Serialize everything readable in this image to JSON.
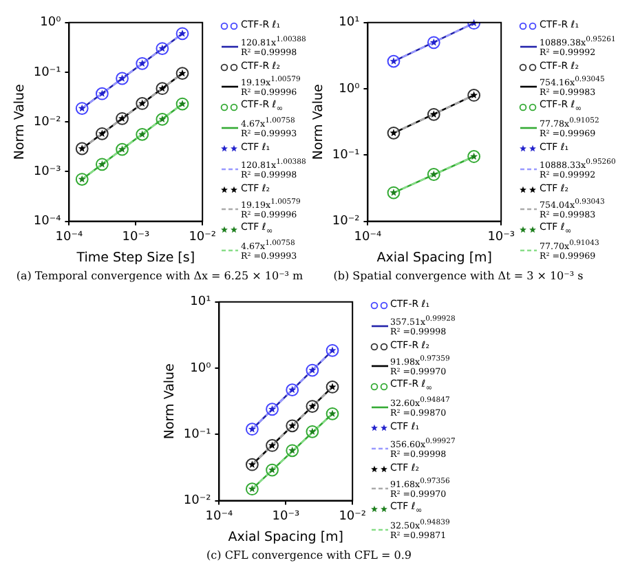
{
  "chart_data": [
    {
      "type": "scatter",
      "xlabel": "Time Step Size [s]",
      "ylabel": "Norm Value",
      "log": "xy",
      "legend": "right",
      "grid": false,
      "xlim": [
        0.0001,
        0.01
      ],
      "xticks": [
        {
          "value": 0.0001,
          "label": "10⁻⁴"
        },
        {
          "value": 0.001,
          "label": "10⁻³"
        },
        {
          "value": 0.01,
          "label": "10⁻²"
        }
      ],
      "ylim": [
        0.0001,
        1
      ],
      "yticks": [
        {
          "value": 0.0001,
          "label": "10⁻⁴"
        },
        {
          "value": 0.001,
          "label": "10⁻³"
        },
        {
          "value": 0.01,
          "label": "10⁻²"
        },
        {
          "value": 0.1,
          "label": "10⁻¹"
        },
        {
          "value": 1,
          "label": "10⁰"
        }
      ],
      "x": [
        0.00015625,
        0.0003125,
        0.000625,
        0.00125,
        0.0025,
        0.005
      ],
      "annotations": [
        "(a) Temporal convergence with Δx = 6.25 × 10⁻³ m"
      ],
      "series": [
        {
          "name": "CTF-R ℓ₁",
          "type": "scatter",
          "marker": "circle",
          "color": "#4444ff",
          "values": [
            0.0187,
            0.037,
            0.075,
            0.15,
            0.3,
            0.6
          ]
        },
        {
          "name": "120.81x$^{1.00388}$\nR² =0.99998",
          "type": "line",
          "marker": "none",
          "line_style": "solid",
          "color": "#2222aa",
          "x": [
            0.00015625,
            0.005
          ],
          "values": [
            0.0187,
            0.6
          ]
        },
        {
          "name": "CTF-R ℓ₂",
          "type": "scatter",
          "marker": "circle",
          "color": "#333333",
          "values": [
            0.0029,
            0.0058,
            0.0117,
            0.0235,
            0.047,
            0.095
          ]
        },
        {
          "name": "19.19x$^{1.00579}$\nR² =0.99996",
          "type": "line",
          "marker": "none",
          "line_style": "solid",
          "color": "#000000",
          "x": [
            0.00015625,
            0.005
          ],
          "values": [
            0.0029,
            0.095
          ]
        },
        {
          "name": "CTF-R ℓ$_{∞}$",
          "type": "scatter",
          "marker": "circle",
          "color": "#33aa33",
          "values": [
            0.0007,
            0.0014,
            0.0028,
            0.0056,
            0.0113,
            0.023
          ]
        },
        {
          "name": "4.67x$^{1.00758}$\nR² =0.99993",
          "type": "line",
          "marker": "none",
          "line_style": "solid",
          "color": "#33aa33",
          "x": [
            0.00015625,
            0.005
          ],
          "values": [
            0.0007,
            0.023
          ]
        },
        {
          "name": "CTF ℓ₁",
          "type": "scatter",
          "marker": "star",
          "color": "#2222cc",
          "values": [
            0.0187,
            0.037,
            0.075,
            0.15,
            0.3,
            0.6
          ]
        },
        {
          "name": "120.81x$^{1.00388}$\nR² =0.99998",
          "type": "line",
          "marker": "none",
          "line_style": "dashed",
          "color": "#9999ff",
          "x": [
            0.00015625,
            0.005
          ],
          "values": [
            0.0187,
            0.6
          ]
        },
        {
          "name": "CTF ℓ₂",
          "type": "scatter",
          "marker": "star",
          "color": "#000000",
          "values": [
            0.0029,
            0.0058,
            0.0117,
            0.0235,
            0.047,
            0.095
          ]
        },
        {
          "name": "19.19x$^{1.00579}$\nR² =0.99996",
          "type": "line",
          "marker": "none",
          "line_style": "dashed",
          "color": "#aaaaaa",
          "x": [
            0.00015625,
            0.005
          ],
          "values": [
            0.0029,
            0.095
          ]
        },
        {
          "name": "CTF ℓ$_{∞}$",
          "type": "scatter",
          "marker": "star",
          "color": "#1e7f1e",
          "values": [
            0.0007,
            0.0014,
            0.0028,
            0.0056,
            0.0113,
            0.023
          ]
        },
        {
          "name": "4.67x$^{1.00758}$\nR² =0.99993",
          "type": "line",
          "marker": "none",
          "line_style": "dashed",
          "color": "#88dd88",
          "x": [
            0.00015625,
            0.005
          ],
          "values": [
            0.0007,
            0.023
          ]
        }
      ]
    },
    {
      "type": "scatter",
      "xlabel": "Axial Spacing [m]",
      "ylabel": "Norm Value",
      "log": "xy",
      "legend": "right",
      "grid": false,
      "xlim": [
        0.0001,
        0.001
      ],
      "xticks": [
        {
          "value": 0.0001,
          "label": "10⁻⁴"
        },
        {
          "value": 0.001,
          "label": "10⁻³"
        }
      ],
      "ylim": [
        0.01,
        10
      ],
      "yticks": [
        {
          "value": 0.01,
          "label": "10⁻²"
        },
        {
          "value": 0.1,
          "label": "10⁻¹"
        },
        {
          "value": 1,
          "label": "10⁰"
        },
        {
          "value": 10,
          "label": "10¹"
        }
      ],
      "x": [
        0.00015625,
        0.0003125,
        0.000625
      ],
      "annotations": [
        "(b) Spatial convergence with Δt = 3 × 10⁻³ s"
      ],
      "series": [
        {
          "name": "CTF-R ℓ₁",
          "type": "scatter",
          "marker": "circle",
          "color": "#4444ff",
          "values": [
            2.6,
            5.0,
            9.8
          ]
        },
        {
          "name": "10889.38x$^{0.95261}$\nR² =0.99992",
          "type": "line",
          "marker": "none",
          "line_style": "solid",
          "color": "#2222aa",
          "x": [
            0.00015625,
            0.000625
          ],
          "values": [
            2.6,
            9.8
          ]
        },
        {
          "name": "CTF-R ℓ₂",
          "type": "scatter",
          "marker": "circle",
          "color": "#333333",
          "values": [
            0.215,
            0.41,
            0.8
          ]
        },
        {
          "name": "754.16x$^{0.93045}$\nR² =0.99983",
          "type": "line",
          "marker": "none",
          "line_style": "solid",
          "color": "#000000",
          "x": [
            0.00015625,
            0.000625
          ],
          "values": [
            0.215,
            0.8
          ]
        },
        {
          "name": "CTF-R ℓ$_{∞}$",
          "type": "scatter",
          "marker": "circle",
          "color": "#33aa33",
          "values": [
            0.027,
            0.051,
            0.095
          ]
        },
        {
          "name": "77.78x$^{0.91052}$\nR² =0.99969",
          "type": "line",
          "marker": "none",
          "line_style": "solid",
          "color": "#33aa33",
          "x": [
            0.00015625,
            0.000625
          ],
          "values": [
            0.027,
            0.095
          ]
        },
        {
          "name": "CTF ℓ₁",
          "type": "scatter",
          "marker": "star",
          "color": "#2222cc",
          "values": [
            2.6,
            5.0,
            9.8
          ]
        },
        {
          "name": "10888.33x$^{0.95260}$\nR² =0.99992",
          "type": "line",
          "marker": "none",
          "line_style": "dashed",
          "color": "#9999ff",
          "x": [
            0.00015625,
            0.000625
          ],
          "values": [
            2.6,
            9.8
          ]
        },
        {
          "name": "CTF ℓ₂",
          "type": "scatter",
          "marker": "star",
          "color": "#000000",
          "values": [
            0.215,
            0.41,
            0.8
          ]
        },
        {
          "name": "754.04x$^{0.93043}$\nR² =0.99983",
          "type": "line",
          "marker": "none",
          "line_style": "dashed",
          "color": "#aaaaaa",
          "x": [
            0.00015625,
            0.000625
          ],
          "values": [
            0.215,
            0.8
          ]
        },
        {
          "name": "CTF ℓ$_{∞}$",
          "type": "scatter",
          "marker": "star",
          "color": "#1e7f1e",
          "values": [
            0.027,
            0.051,
            0.095
          ]
        },
        {
          "name": "77.70x$^{0.91043}$\nR² =0.99969",
          "type": "line",
          "marker": "none",
          "line_style": "dashed",
          "color": "#88dd88",
          "x": [
            0.00015625,
            0.000625
          ],
          "values": [
            0.027,
            0.095
          ]
        }
      ]
    },
    {
      "type": "scatter",
      "xlabel": "Axial Spacing [m]",
      "ylabel": "Norm Value",
      "log": "xy",
      "legend": "right",
      "grid": false,
      "xlim": [
        0.0001,
        0.01
      ],
      "xticks": [
        {
          "value": 0.0001,
          "label": "10⁻⁴"
        },
        {
          "value": 0.001,
          "label": "10⁻³"
        },
        {
          "value": 0.01,
          "label": "10⁻²"
        }
      ],
      "ylim": [
        0.01,
        10
      ],
      "yticks": [
        {
          "value": 0.01,
          "label": "10⁻²"
        },
        {
          "value": 0.1,
          "label": "10⁻¹"
        },
        {
          "value": 1,
          "label": "10⁰"
        },
        {
          "value": 10,
          "label": "10¹"
        }
      ],
      "x": [
        0.0003125,
        0.000625,
        0.00125,
        0.0025,
        0.005
      ],
      "annotations": [
        "(c) CFL convergence with CFL = 0.9"
      ],
      "series": [
        {
          "name": "CTF-R ℓ₁",
          "type": "scatter",
          "marker": "circle",
          "color": "#4444ff",
          "values": [
            0.12,
            0.24,
            0.47,
            0.93,
            1.85
          ]
        },
        {
          "name": "357.51x$^{0.99928}$\nR² =0.99998",
          "type": "line",
          "marker": "none",
          "line_style": "solid",
          "color": "#2222aa",
          "x": [
            0.0003125,
            0.005
          ],
          "values": [
            0.12,
            1.85
          ]
        },
        {
          "name": "CTF-R ℓ₂",
          "type": "scatter",
          "marker": "circle",
          "color": "#333333",
          "values": [
            0.035,
            0.068,
            0.135,
            0.265,
            0.52
          ]
        },
        {
          "name": "91.98x$^{0.97359}$\nR² =0.99970",
          "type": "line",
          "marker": "none",
          "line_style": "solid",
          "color": "#000000",
          "x": [
            0.0003125,
            0.005
          ],
          "values": [
            0.035,
            0.52
          ]
        },
        {
          "name": "CTF-R ℓ$_{∞}$",
          "type": "scatter",
          "marker": "circle",
          "color": "#33aa33",
          "values": [
            0.015,
            0.029,
            0.057,
            0.11,
            0.205
          ]
        },
        {
          "name": "32.60x$^{0.94847}$\nR² =0.99870",
          "type": "line",
          "marker": "none",
          "line_style": "solid",
          "color": "#33aa33",
          "x": [
            0.0003125,
            0.005
          ],
          "values": [
            0.015,
            0.205
          ]
        },
        {
          "name": "CTF ℓ₁",
          "type": "scatter",
          "marker": "star",
          "color": "#2222cc",
          "values": [
            0.12,
            0.24,
            0.47,
            0.93,
            1.85
          ]
        },
        {
          "name": "356.60x$^{0.99927}$\nR² =0.99998",
          "type": "line",
          "marker": "none",
          "line_style": "dashed",
          "color": "#9999ff",
          "x": [
            0.0003125,
            0.005
          ],
          "values": [
            0.12,
            1.85
          ]
        },
        {
          "name": "CTF ℓ₂",
          "type": "scatter",
          "marker": "star",
          "color": "#000000",
          "values": [
            0.035,
            0.068,
            0.135,
            0.265,
            0.52
          ]
        },
        {
          "name": "91.68x$^{0.97356}$\nR² =0.99970",
          "type": "line",
          "marker": "none",
          "line_style": "dashed",
          "color": "#aaaaaa",
          "x": [
            0.0003125,
            0.005
          ],
          "values": [
            0.035,
            0.52
          ]
        },
        {
          "name": "CTF ℓ$_{∞}$",
          "type": "scatter",
          "marker": "star",
          "color": "#1e7f1e",
          "values": [
            0.015,
            0.029,
            0.057,
            0.11,
            0.205
          ]
        },
        {
          "name": "32.50x$^{0.94839}$\nR² =0.99871",
          "type": "line",
          "marker": "none",
          "line_style": "dashed",
          "color": "#88dd88",
          "x": [
            0.0003125,
            0.005
          ],
          "values": [
            0.015,
            0.205
          ]
        }
      ]
    }
  ]
}
